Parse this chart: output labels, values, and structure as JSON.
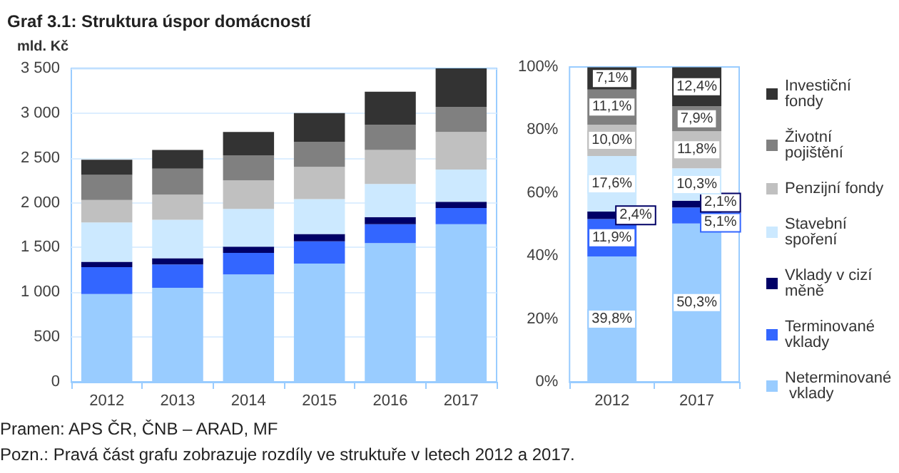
{
  "chart_data": [
    {
      "type": "bar",
      "title": "Graf 3.1: Struktura úspor domácností",
      "ylabel": "mld. Kč",
      "stacked": true,
      "categories": [
        "2012",
        "2013",
        "2014",
        "2015",
        "2016",
        "2017"
      ],
      "series": [
        {
          "color": "#99ccff",
          "values": [
            980,
            1050,
            1200,
            1320,
            1550,
            1760
          ]
        },
        {
          "color": "#3366ff",
          "values": [
            300,
            260,
            240,
            250,
            210,
            180
          ]
        },
        {
          "color": "#000066",
          "values": [
            60,
            70,
            70,
            80,
            80,
            70
          ]
        },
        {
          "color": "#cce9ff",
          "values": [
            440,
            430,
            420,
            390,
            370,
            360
          ]
        },
        {
          "color": "#c0c0c0",
          "values": [
            250,
            280,
            320,
            360,
            380,
            420
          ]
        },
        {
          "color": "#808080",
          "values": [
            280,
            290,
            280,
            280,
            280,
            280
          ]
        },
        {
          "color": "#333333",
          "values": [
            170,
            210,
            260,
            320,
            370,
            430
          ]
        }
      ],
      "ylim": [
        0,
        3500
      ],
      "yticks": [
        0,
        500,
        {
          "value": 1000,
          "label": "1 000"
        },
        {
          "value": 1500,
          "label": "1 500"
        },
        {
          "value": 2000,
          "label": "2 000"
        },
        {
          "value": 2500,
          "label": "2 500"
        },
        {
          "value": 3000,
          "label": "3 000"
        },
        {
          "value": 3500,
          "label": "3 500"
        }
      ],
      "grid": "y",
      "legend": false,
      "annotations": [
        "Pramen: APS ČR, ČNB – ARAD, MF",
        "Pozn.: Pravá část grafu zobrazuje rozdíly ve struktuře v letech 2012 a 2017."
      ]
    },
    {
      "type": "bar",
      "stacked": true,
      "categories": [
        "2012",
        "2017"
      ],
      "series": [
        {
          "name": "Neterminované vklady",
          "color": "#99ccff",
          "values": [
            39.8,
            50.3
          ],
          "value_labels": [
            "39,8%",
            "50,3%"
          ]
        },
        {
          "name": "Terminované vklady",
          "color": "#3366ff",
          "values": [
            11.9,
            5.1
          ],
          "value_labels": [
            "11,9%",
            "5,1%"
          ]
        },
        {
          "name": "Vklady v cizí měně",
          "color": "#000066",
          "values": [
            2.4,
            2.1
          ],
          "value_labels": [
            "2,4%",
            "2,1%"
          ]
        },
        {
          "name": "Stavební spoření",
          "color": "#cce9ff",
          "values": [
            17.6,
            10.3
          ],
          "value_labels": [
            "17,6%",
            "10,3%"
          ]
        },
        {
          "name": "Penzijní fondy",
          "color": "#c0c0c0",
          "values": [
            10.0,
            11.8
          ],
          "value_labels": [
            "10,0%",
            "11,8%"
          ]
        },
        {
          "name": "Životní pojištění",
          "color": "#808080",
          "values": [
            11.1,
            7.9
          ],
          "value_labels": [
            "11,1%",
            "7,9%"
          ]
        },
        {
          "name": "Investiční fondy",
          "color": "#333333",
          "values": [
            7.1,
            12.4
          ],
          "value_labels": [
            "7,1%",
            "12,4%"
          ]
        }
      ],
      "ylim": [
        0,
        100
      ],
      "yticks": [
        {
          "value": 0,
          "label": "0%"
        },
        {
          "value": 20,
          "label": "20%"
        },
        {
          "value": 40,
          "label": "40%"
        },
        {
          "value": 60,
          "label": "60%"
        },
        {
          "value": 80,
          "label": "80%"
        },
        {
          "value": 100,
          "label": "100%"
        }
      ],
      "grid": false,
      "legend": "right"
    }
  ]
}
